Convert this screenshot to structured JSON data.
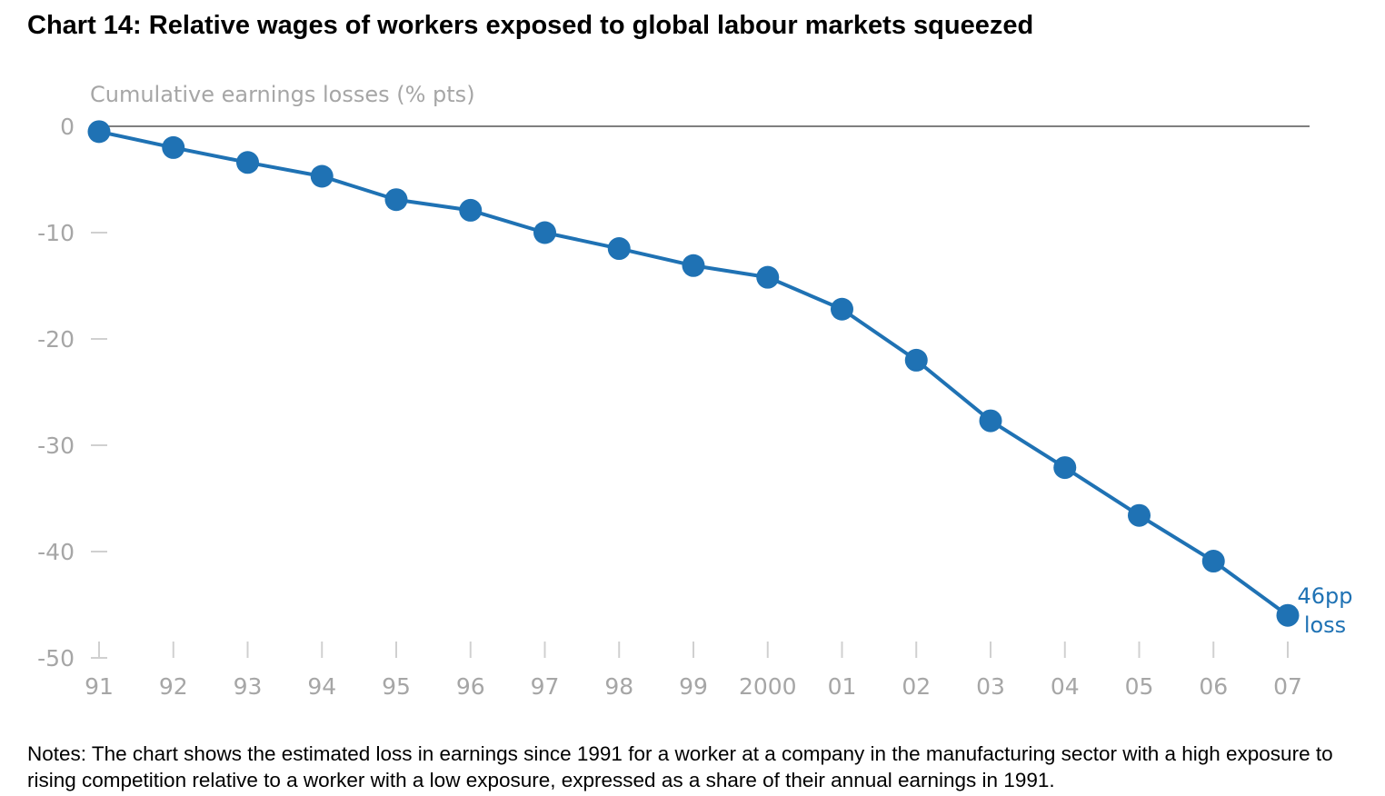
{
  "title": "Chart 14:  Relative wages of workers exposed to global labour markets squeezed",
  "notes": "Notes:  The chart shows the estimated loss in earnings since 1991 for a worker at a company in the manufacturing sector with a high exposure to rising competition relative to a worker with a low exposure, expressed as a share of their annual earnings in 1991.",
  "colors": {
    "series": "#1f72b4",
    "axis_text": "#a6a6a6",
    "zero_line": "#7f7f7f",
    "tick": "#d0d0d0"
  },
  "chart_data": {
    "type": "line",
    "title": "Chart 14:  Relative wages of workers exposed to global labour markets squeezed",
    "ylabel": "Cumulative earnings losses (% pts)",
    "xlabel": "",
    "ylim": [
      -50,
      0
    ],
    "yticks": [
      0,
      -10,
      -20,
      -30,
      -40,
      -50
    ],
    "ytick_labels": [
      "0",
      "-10",
      "-20",
      "-30",
      "-40",
      "-50"
    ],
    "categories": [
      "91",
      "92",
      "93",
      "94",
      "95",
      "96",
      "97",
      "98",
      "99",
      "2000",
      "01",
      "02",
      "03",
      "04",
      "05",
      "06",
      "07"
    ],
    "series": [
      {
        "values": [
          -0.5,
          -2.0,
          -3.4,
          -4.7,
          -6.9,
          -7.9,
          -10.0,
          -11.5,
          -13.1,
          -14.2,
          -17.2,
          -22.0,
          -27.7,
          -32.1,
          -36.6,
          -40.9,
          -46.0
        ]
      }
    ],
    "annotations": [
      {
        "line1": "46pp",
        "line2": "loss"
      }
    ],
    "grid": false,
    "legend": "none"
  }
}
